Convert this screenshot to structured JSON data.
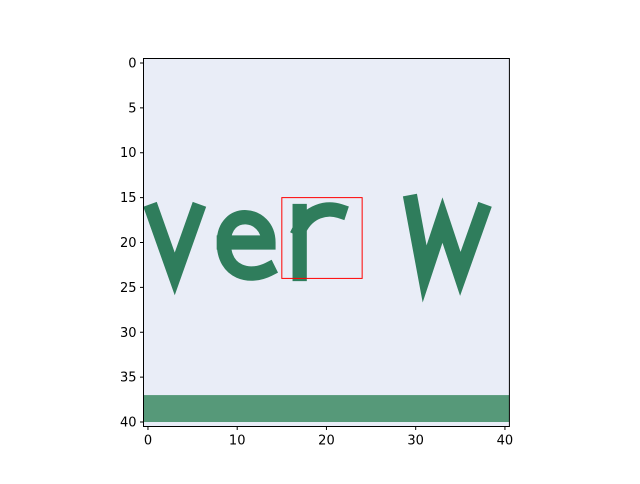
{
  "chart_data": {
    "type": "image",
    "xlim": [
      -0.5,
      40.5
    ],
    "ylim": [
      40.5,
      -0.5
    ],
    "xticks": [
      0,
      10,
      20,
      30,
      40
    ],
    "yticks": [
      0,
      5,
      10,
      15,
      20,
      25,
      30,
      35,
      40
    ],
    "box": {
      "x0": 15,
      "y0": 15,
      "x1": 24,
      "y1": 24,
      "color": "#ff0000"
    }
  }
}
